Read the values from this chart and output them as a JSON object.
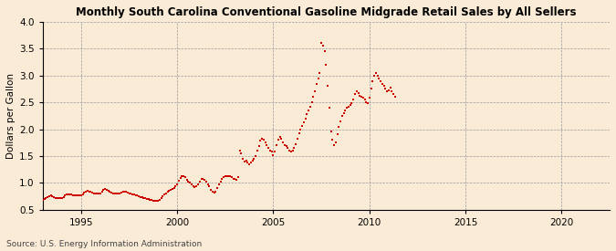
{
  "title": "Monthly South Carolina Conventional Gasoline Midgrade Retail Sales by All Sellers",
  "ylabel": "Dollars per Gallon",
  "source": "Source: U.S. Energy Information Administration",
  "background_color": "#faebd7",
  "marker_color": "#cc0000",
  "xlim": [
    1993.0,
    2022.5
  ],
  "ylim": [
    0.5,
    4.0
  ],
  "xticks": [
    1995,
    2000,
    2005,
    2010,
    2015,
    2020
  ],
  "yticks": [
    0.5,
    1.0,
    1.5,
    2.0,
    2.5,
    3.0,
    3.5,
    4.0
  ],
  "prices": [
    0.68,
    0.7,
    0.72,
    0.73,
    0.75,
    0.76,
    0.75,
    0.73,
    0.72,
    0.71,
    0.71,
    0.71,
    0.72,
    0.74,
    0.76,
    0.78,
    0.79,
    0.79,
    0.78,
    0.77,
    0.76,
    0.76,
    0.76,
    0.76,
    0.77,
    0.79,
    0.82,
    0.84,
    0.85,
    0.84,
    0.83,
    0.82,
    0.81,
    0.8,
    0.8,
    0.8,
    0.81,
    0.84,
    0.87,
    0.88,
    0.87,
    0.85,
    0.83,
    0.82,
    0.81,
    0.8,
    0.8,
    0.8,
    0.8,
    0.82,
    0.84,
    0.84,
    0.83,
    0.82,
    0.81,
    0.8,
    0.79,
    0.78,
    0.77,
    0.76,
    0.75,
    0.74,
    0.73,
    0.72,
    0.71,
    0.7,
    0.7,
    0.69,
    0.68,
    0.67,
    0.67,
    0.67,
    0.67,
    0.69,
    0.72,
    0.75,
    0.78,
    0.81,
    0.83,
    0.85,
    0.87,
    0.89,
    0.91,
    0.93,
    0.97,
    1.04,
    1.09,
    1.12,
    1.12,
    1.1,
    1.06,
    1.03,
    1.01,
    0.97,
    0.94,
    0.92,
    0.93,
    0.98,
    1.03,
    1.07,
    1.08,
    1.06,
    1.02,
    0.98,
    0.93,
    0.87,
    0.83,
    0.82,
    0.83,
    0.9,
    0.97,
    1.03,
    1.08,
    1.11,
    1.13,
    1.13,
    1.12,
    1.12,
    1.1,
    1.08,
    1.07,
    1.05,
    1.1,
    1.6,
    1.55,
    1.45,
    1.4,
    1.42,
    1.38,
    1.35,
    1.38,
    1.42,
    1.45,
    1.5,
    1.6,
    1.68,
    1.78,
    1.82,
    1.8,
    1.75,
    1.7,
    1.65,
    1.6,
    1.58,
    1.52,
    1.58,
    1.7,
    1.8,
    1.85,
    1.82,
    1.75,
    1.7,
    1.68,
    1.65,
    1.6,
    1.58,
    1.6,
    1.65,
    1.72,
    1.82,
    1.92,
    2.0,
    2.06,
    2.12,
    2.2,
    2.28,
    2.35,
    2.42,
    2.5,
    2.6,
    2.7,
    2.85,
    2.95,
    3.05,
    3.6,
    3.55,
    3.45,
    3.2,
    2.8,
    2.4,
    1.95,
    1.8,
    1.7,
    1.75,
    1.9,
    2.05,
    2.15,
    2.25,
    2.3,
    2.35,
    2.4,
    2.42,
    2.45,
    2.48,
    2.55,
    2.65,
    2.7,
    2.68,
    2.62,
    2.6,
    2.58,
    2.55,
    2.5,
    2.48,
    2.58,
    2.75,
    2.9,
    3.0,
    3.05,
    3.0,
    2.95,
    2.9,
    2.85,
    2.8,
    2.75,
    2.7,
    2.72,
    2.78,
    2.7,
    2.65,
    2.6
  ],
  "start_year": 1993,
  "start_month": 1
}
